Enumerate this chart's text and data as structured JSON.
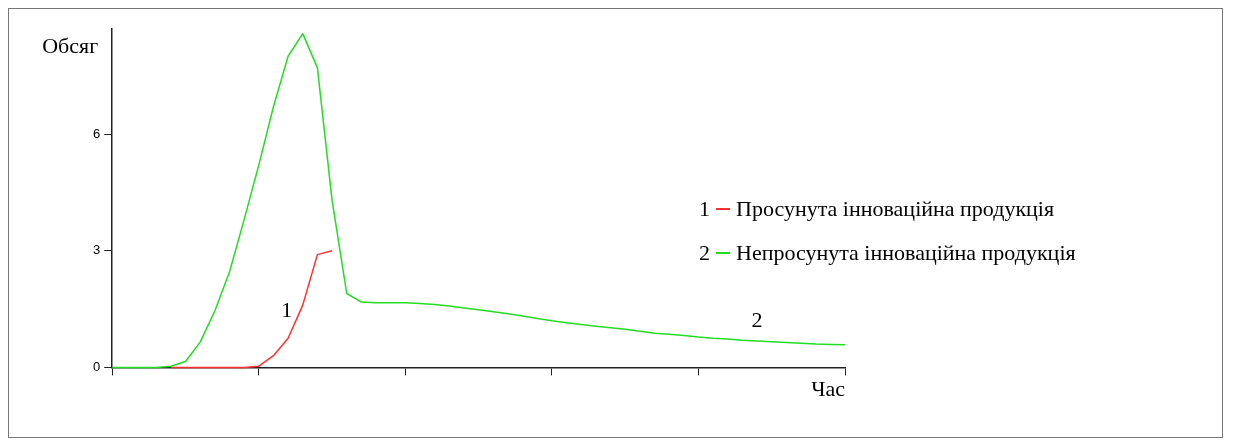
{
  "chart_data": {
    "type": "line",
    "xlabel": "Час",
    "ylabel": "Обсяг",
    "categories": [
      null,
      null,
      null,
      null,
      null,
      null,
      null,
      null,
      null,
      null,
      null,
      null,
      null,
      null,
      null,
      null,
      null,
      null,
      null,
      null,
      null,
      null,
      null,
      null,
      null,
      null,
      null,
      null,
      null,
      null,
      null,
      null,
      null,
      null,
      null,
      null,
      null,
      null,
      null,
      null,
      null,
      null,
      null,
      null,
      null,
      null,
      null,
      null,
      null,
      null,
      null
    ],
    "ylim": [
      0,
      8.7
    ],
    "yticks": [
      0,
      3,
      6
    ],
    "grid": false,
    "legend": "right",
    "marker": "none",
    "line_style": "solid",
    "series": [
      {
        "name": "Просунута інноваційна продукція",
        "color": "#ff3030",
        "values": [
          null,
          null,
          null,
          null,
          0,
          0,
          0,
          0,
          0,
          0,
          0.03,
          0.3,
          0.75,
          1.6,
          2.9,
          3.0,
          null,
          null,
          null,
          null,
          null,
          null,
          null,
          null,
          null,
          null,
          null,
          null,
          null,
          null,
          null,
          null,
          null,
          null,
          null,
          null,
          null,
          null,
          null,
          null,
          null,
          null,
          null,
          null,
          null,
          null,
          null,
          null,
          null,
          null,
          null
        ]
      },
      {
        "name": "Непросунута інноваційна продукція",
        "color": "#22dd22",
        "values": [
          0,
          0,
          0,
          0,
          0.03,
          0.15,
          0.65,
          1.45,
          2.45,
          3.8,
          5.2,
          6.7,
          8.0,
          8.58,
          7.7,
          4.3,
          1.9,
          1.68,
          1.66,
          1.66,
          1.66,
          1.64,
          1.62,
          1.58,
          1.53,
          1.48,
          1.43,
          1.38,
          1.32,
          1.26,
          1.2,
          1.15,
          1.1,
          1.06,
          1.02,
          0.98,
          0.93,
          0.88,
          0.85,
          0.82,
          0.78,
          0.75,
          0.73,
          0.7,
          0.68,
          0.66,
          0.64,
          0.62,
          0.6,
          0.59,
          0.58
        ]
      }
    ],
    "annotations": [
      "1",
      "2"
    ]
  }
}
